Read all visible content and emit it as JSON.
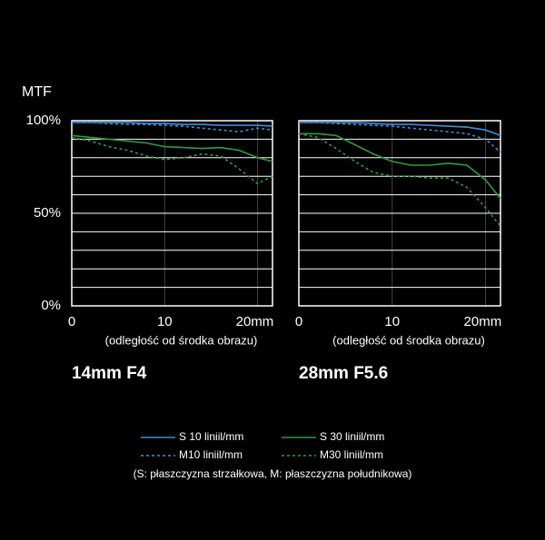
{
  "chart_data": [
    {
      "type": "line",
      "title": "14mm F4",
      "ylabel": "MTF",
      "xlabel": "(odległość od środka obrazu)",
      "x": [
        0,
        2,
        4,
        6,
        8,
        10,
        12,
        14,
        16,
        18,
        20,
        21.6
      ],
      "xlim": [
        0,
        21.6
      ],
      "ylim": [
        0,
        100
      ],
      "xticks": [
        0,
        10,
        {
          "value": 20,
          "label": "20mm"
        }
      ],
      "yticks": [
        {
          "value": 0,
          "label": "0%"
        },
        {
          "value": 50,
          "label": "50%"
        },
        {
          "value": 100,
          "label": "100%"
        }
      ],
      "ygrid": [
        0,
        10,
        20,
        30,
        40,
        50,
        60,
        70,
        80,
        90,
        100
      ],
      "series": [
        {
          "name": "S 10 liniil/mm",
          "color": "#3d8fdc",
          "style": "solid",
          "values": [
            99,
            99,
            99,
            99,
            98.5,
            98.5,
            98,
            98,
            97.5,
            97.5,
            97.5,
            97
          ]
        },
        {
          "name": "M10 liniil/mm",
          "color": "#3d8fdc",
          "style": "dashed",
          "values": [
            99,
            99,
            98.5,
            98,
            98,
            97.5,
            97,
            96,
            95,
            94,
            96,
            95
          ]
        },
        {
          "name": "S 30 liniil/mm",
          "color": "#2f9b3f",
          "style": "solid",
          "values": [
            92,
            91,
            90,
            89,
            88,
            86,
            85.5,
            85,
            85.5,
            84,
            80,
            78
          ]
        },
        {
          "name": "M30 liniil/mm",
          "color": "#2f9b3f",
          "style": "dashed",
          "values": [
            91,
            89,
            86,
            84,
            81,
            79,
            80,
            82,
            81,
            74,
            66,
            70
          ]
        }
      ]
    },
    {
      "type": "line",
      "title": "28mm F5.6",
      "xlabel": "(odległość od środka obrazu)",
      "x": [
        0,
        2,
        4,
        6,
        8,
        10,
        12,
        14,
        16,
        18,
        20,
        21.6
      ],
      "xlim": [
        0,
        21.6
      ],
      "ylim": [
        0,
        100
      ],
      "xticks": [
        0,
        10,
        {
          "value": 20,
          "label": "20mm"
        }
      ],
      "ygrid": [
        0,
        10,
        20,
        30,
        40,
        50,
        60,
        70,
        80,
        90,
        100
      ],
      "series": [
        {
          "name": "S 10 liniil/mm",
          "color": "#3d8fdc",
          "style": "solid",
          "values": [
            99,
            99,
            99,
            99,
            98.5,
            98,
            98,
            97.5,
            97,
            96.5,
            95,
            92
          ]
        },
        {
          "name": "M10 liniil/mm",
          "color": "#3d8fdc",
          "style": "dashed",
          "values": [
            99,
            99,
            98.5,
            98,
            97.5,
            97,
            96,
            95,
            94,
            93,
            90,
            83
          ]
        },
        {
          "name": "S 30 liniil/mm",
          "color": "#2f9b3f",
          "style": "solid",
          "values": [
            93,
            93,
            92,
            87,
            82,
            78,
            76,
            76,
            77,
            76,
            68,
            58
          ]
        },
        {
          "name": "M30 liniil/mm",
          "color": "#2f9b3f",
          "style": "dashed",
          "values": [
            93,
            91,
            85,
            78,
            72,
            70,
            70,
            69,
            69,
            64,
            53,
            43
          ]
        }
      ]
    }
  ],
  "note": "(S: płaszczyzna strzałkowa, M: płaszczyzna południkowa)"
}
